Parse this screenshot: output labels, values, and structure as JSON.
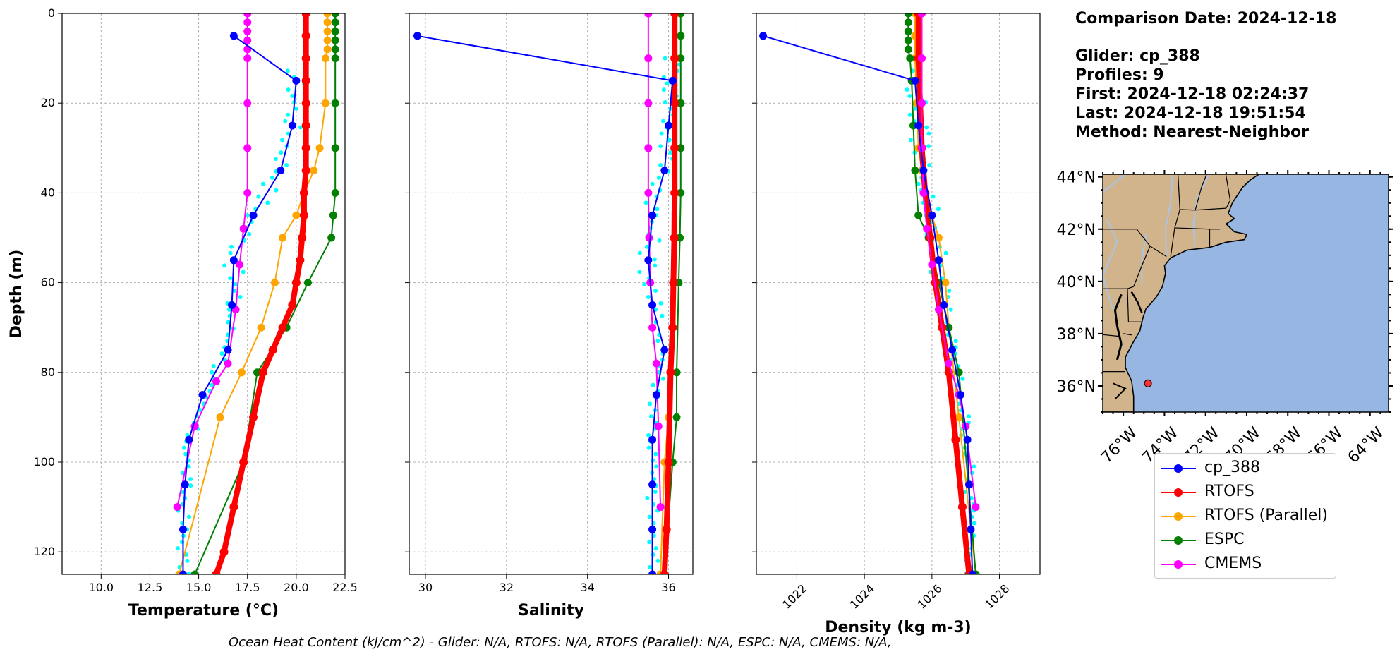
{
  "info": {
    "comparison_date": "Comparison Date: 2024-12-18",
    "glider": "Glider: cp_388",
    "profiles": "Profiles: 9",
    "first": "First: 2024-12-18 02:24:37",
    "last": "Last: 2024-12-18 19:51:54",
    "method": "Method: Nearest-Neighbor"
  },
  "footer": "Ocean Heat Content (kJ/cm^2) - Glider: N/A,  RTOFS: N/A,  RTOFS (Parallel): N/A,  ESPC: N/A,  CMEMS: N/A,",
  "colors": {
    "cp_388": "#0000ff",
    "RTOFS": "#ff0000",
    "RTOFS (Parallel)": "#ffa500",
    "ESPC": "#008000",
    "CMEMS": "#ff00ff",
    "glider_raw": "#00ffff",
    "land": "#d2b48c",
    "ocean": "#97b6e1",
    "rivers": "#a8c4e6",
    "marker": "#ff3030"
  },
  "chart_data": [
    {
      "type": "line",
      "xlabel": "Temperature (°C)",
      "ylabel": "Depth (m)",
      "xlim": [
        8,
        22.5
      ],
      "ylim": [
        125,
        0
      ],
      "xticks": [
        "10.0",
        "12.5",
        "15.0",
        "17.5",
        "20.0",
        "22.5"
      ],
      "yticks": [
        "0",
        "20",
        "40",
        "60",
        "80",
        "100",
        "120"
      ],
      "grid": true,
      "legend": "outside-right-bottom",
      "series": [
        {
          "name": "cp_388",
          "x": [
            16.8,
            20.0,
            19.8,
            19.2,
            17.8,
            16.8,
            16.7,
            16.5,
            15.2,
            14.5,
            14.3,
            14.2,
            14.2
          ],
          "y": [
            5,
            15,
            25,
            35,
            45,
            55,
            65,
            75,
            85,
            95,
            105,
            115,
            125
          ]
        },
        {
          "name": "RTOFS",
          "x": [
            20.5,
            20.5,
            20.5,
            20.5,
            20.5,
            20.5,
            20.5,
            20.5,
            20.4,
            20.4,
            20.3,
            20.2,
            20.0,
            19.8,
            19.3,
            18.8,
            18.3,
            17.8,
            17.3,
            16.8,
            16.3,
            15.9
          ],
          "y": [
            0,
            5,
            10,
            15,
            20,
            25,
            30,
            35,
            40,
            45,
            50,
            55,
            60,
            65,
            70,
            75,
            80,
            90,
            100,
            110,
            120,
            125
          ]
        },
        {
          "name": "RTOFS (Parallel)",
          "x": [
            21.6,
            21.6,
            21.6,
            21.6,
            21.6,
            21.5,
            21.5,
            21.2,
            20.9,
            20.4,
            20.0,
            19.3,
            18.9,
            18.2,
            17.2,
            16.1,
            14.0
          ],
          "y": [
            0,
            2,
            4,
            6,
            8,
            10,
            20,
            30,
            35,
            40,
            45,
            50,
            60,
            70,
            80,
            90,
            125
          ]
        },
        {
          "name": "ESPC",
          "x": [
            22.0,
            22.0,
            22.0,
            22.0,
            22.0,
            22.0,
            22.0,
            22.0,
            22.0,
            21.9,
            21.8,
            20.6,
            19.5,
            18.0,
            17.3,
            14.8
          ],
          "y": [
            0,
            2,
            4,
            6,
            8,
            10,
            20,
            30,
            40,
            45,
            50,
            60,
            70,
            80,
            100,
            125
          ]
        },
        {
          "name": "CMEMS",
          "x": [
            17.5,
            17.5,
            17.5,
            17.5,
            17.5,
            17.5,
            17.5,
            17.5,
            17.5,
            17.3,
            17.1,
            16.9,
            16.5,
            15.9,
            14.8,
            13.9
          ],
          "y": [
            0,
            2,
            4,
            6,
            8,
            10,
            20,
            30,
            40,
            48,
            56,
            66,
            78,
            82,
            92,
            110
          ]
        }
      ]
    },
    {
      "type": "line",
      "xlabel": "Salinity",
      "xlim": [
        29.6,
        36.6
      ],
      "ylim": [
        125,
        0
      ],
      "xticks": [
        "30",
        "32",
        "34",
        "36"
      ],
      "grid": true,
      "series": [
        {
          "name": "cp_388",
          "x": [
            29.8,
            36.1,
            36.0,
            35.9,
            35.6,
            35.5,
            35.6,
            35.9,
            35.7,
            35.6,
            35.6,
            35.6,
            35.6
          ],
          "y": [
            5,
            15,
            25,
            35,
            45,
            55,
            65,
            75,
            85,
            95,
            105,
            115,
            125
          ]
        },
        {
          "name": "RTOFS",
          "x": [
            36.15,
            36.15,
            36.15,
            36.15,
            36.15,
            36.14,
            36.12,
            36.1,
            36.05,
            36.0,
            35.95,
            35.9
          ],
          "y": [
            0,
            10,
            20,
            30,
            40,
            50,
            60,
            70,
            80,
            100,
            115,
            125
          ]
        },
        {
          "name": "RTOFS (Parallel)",
          "x": [
            36.2,
            36.2,
            36.2,
            36.18,
            36.15,
            36.1,
            36.05,
            36.0,
            35.9,
            35.8
          ],
          "y": [
            0,
            10,
            20,
            40,
            60,
            70,
            80,
            90,
            100,
            125
          ]
        },
        {
          "name": "ESPC",
          "x": [
            36.3,
            36.3,
            36.3,
            36.3,
            36.3,
            36.3,
            36.28,
            36.25,
            36.2,
            36.2,
            36.1,
            35.9
          ],
          "y": [
            0,
            5,
            10,
            20,
            30,
            40,
            50,
            60,
            80,
            90,
            100,
            125
          ]
        },
        {
          "name": "CMEMS",
          "x": [
            35.5,
            35.5,
            35.5,
            35.5,
            35.5,
            35.52,
            35.55,
            35.6,
            35.7,
            35.75,
            35.8
          ],
          "y": [
            0,
            10,
            20,
            30,
            40,
            50,
            60,
            70,
            78,
            92,
            110
          ]
        }
      ]
    },
    {
      "type": "line",
      "xlabel": "Density (kg m-3)",
      "xlim": [
        1020.8,
        1029.2
      ],
      "ylim": [
        125,
        0
      ],
      "xticks": [
        "1022",
        "1024",
        "1026",
        "1028"
      ],
      "grid": true,
      "series": [
        {
          "name": "cp_388",
          "x": [
            1021.0,
            1025.5,
            1025.6,
            1025.75,
            1026.0,
            1026.2,
            1026.35,
            1026.6,
            1026.85,
            1027.05,
            1027.1,
            1027.15,
            1027.2
          ],
          "y": [
            5,
            15,
            25,
            35,
            45,
            55,
            65,
            75,
            85,
            95,
            105,
            115,
            125
          ]
        },
        {
          "name": "RTOFS",
          "x": [
            1025.6,
            1025.6,
            1025.65,
            1025.7,
            1025.8,
            1025.95,
            1026.1,
            1026.3,
            1026.5,
            1026.7,
            1026.9,
            1027.1
          ],
          "y": [
            0,
            10,
            20,
            30,
            40,
            50,
            60,
            70,
            80,
            95,
            110,
            125
          ]
        },
        {
          "name": "RTOFS (Parallel)",
          "x": [
            1025.5,
            1025.5,
            1025.5,
            1025.55,
            1025.6,
            1025.7,
            1025.8,
            1026.0,
            1026.2,
            1026.4,
            1026.5,
            1026.8,
            1027.3
          ],
          "y": [
            0,
            5,
            10,
            20,
            30,
            35,
            40,
            45,
            50,
            60,
            70,
            90,
            125
          ]
        },
        {
          "name": "ESPC",
          "x": [
            1025.3,
            1025.3,
            1025.3,
            1025.3,
            1025.3,
            1025.35,
            1025.4,
            1025.45,
            1025.5,
            1025.6,
            1025.9,
            1026.2,
            1026.5,
            1026.8,
            1027.3
          ],
          "y": [
            0,
            2,
            4,
            6,
            8,
            10,
            15,
            25,
            35,
            45,
            50,
            60,
            70,
            80,
            125
          ]
        },
        {
          "name": "CMEMS",
          "x": [
            1025.7,
            1025.7,
            1025.7,
            1025.7,
            1025.75,
            1025.85,
            1026.0,
            1026.2,
            1026.5,
            1026.8,
            1027.0,
            1027.3
          ],
          "y": [
            0,
            10,
            20,
            30,
            40,
            48,
            56,
            66,
            78,
            85,
            92,
            110
          ]
        }
      ]
    }
  ],
  "map": {
    "lat_labels": [
      "44°N",
      "42°N",
      "40°N",
      "38°N",
      "36°N"
    ],
    "lon_labels": [
      "76°W",
      "74°W",
      "72°W",
      "70°W",
      "68°W",
      "66°W",
      "64°W"
    ],
    "lat_range": [
      35,
      44.1
    ],
    "lon_range": [
      -77,
      -63.1
    ],
    "glider_position": {
      "lon": -74.8,
      "lat": 36.1
    }
  }
}
